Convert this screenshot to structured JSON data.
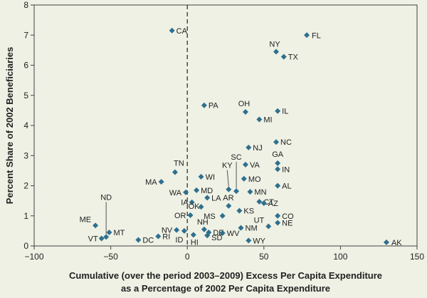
{
  "chart_data": {
    "type": "scatter",
    "title": "",
    "xlabel_line1": "Cumulative (over the period 2003–2009) Excess Per Capita Expenditure",
    "xlabel_line2": "as a Percentage of 2002 Per Capita Expenditure",
    "ylabel": "Percent Share of 2002 Beneficiaries",
    "xlim": [
      -100,
      150
    ],
    "ylim": [
      0,
      8
    ],
    "xticks": [
      -100,
      -50,
      0,
      50,
      100,
      150
    ],
    "yticks": [
      0,
      1,
      2,
      3,
      4,
      5,
      6,
      7,
      8
    ],
    "reference_line_x": 0,
    "marker_color": "#2f6f8f",
    "points": [
      {
        "label": "CA",
        "x": -10,
        "y": 7.15
      },
      {
        "label": "FL",
        "x": 78,
        "y": 7.0
      },
      {
        "label": "NY",
        "x": 58,
        "y": 6.45
      },
      {
        "label": "TX",
        "x": 63,
        "y": 6.28
      },
      {
        "label": "PA",
        "x": 11,
        "y": 4.67
      },
      {
        "label": "OH",
        "x": 38,
        "y": 4.45
      },
      {
        "label": "IL",
        "x": 59,
        "y": 4.48
      },
      {
        "label": "MI",
        "x": 47,
        "y": 4.2
      },
      {
        "label": "NC",
        "x": 58,
        "y": 3.45
      },
      {
        "label": "NJ",
        "x": 40,
        "y": 3.27
      },
      {
        "label": "GA",
        "x": 59,
        "y": 2.75
      },
      {
        "label": "VA",
        "x": 38,
        "y": 2.7
      },
      {
        "label": "IN",
        "x": 59,
        "y": 2.55
      },
      {
        "label": "SC",
        "x": 32,
        "y": 1.82
      },
      {
        "label": "TN",
        "x": -8,
        "y": 2.45
      },
      {
        "label": "WI",
        "x": 9,
        "y": 2.3
      },
      {
        "label": "MO",
        "x": 37,
        "y": 2.23
      },
      {
        "label": "MA",
        "x": -17,
        "y": 2.13
      },
      {
        "label": "AL",
        "x": 59,
        "y": 2.0
      },
      {
        "label": "KY",
        "x": 27,
        "y": 1.88
      },
      {
        "label": "MD",
        "x": 6,
        "y": 1.85
      },
      {
        "label": "MN",
        "x": 41,
        "y": 1.8
      },
      {
        "label": "WA",
        "x": -1,
        "y": 1.78
      },
      {
        "label": "LA",
        "x": 13,
        "y": 1.6
      },
      {
        "label": "IA",
        "x": 3,
        "y": 1.45
      },
      {
        "label": "CT",
        "x": 47,
        "y": 1.47
      },
      {
        "label": "AZ",
        "x": 50,
        "y": 1.42
      },
      {
        "label": "AR",
        "x": 27,
        "y": 1.33
      },
      {
        "label": "OK",
        "x": 9,
        "y": 1.3
      },
      {
        "label": "KS",
        "x": 34,
        "y": 1.17
      },
      {
        "label": "OR",
        "x": 2,
        "y": 1.02
      },
      {
        "label": "MS",
        "x": 23,
        "y": 1.0
      },
      {
        "label": "CO",
        "x": 59,
        "y": 1.0
      },
      {
        "label": "UT",
        "x": 53,
        "y": 0.65
      },
      {
        "label": "NE",
        "x": 59,
        "y": 0.77
      },
      {
        "label": "NM",
        "x": 35,
        "y": 0.6
      },
      {
        "label": "ME",
        "x": -60,
        "y": 0.68
      },
      {
        "label": "NH",
        "x": 11,
        "y": 0.55
      },
      {
        "label": "NV",
        "x": -7,
        "y": 0.53
      },
      {
        "label": "DE",
        "x": 14,
        "y": 0.45
      },
      {
        "label": "MT",
        "x": -51,
        "y": 0.45
      },
      {
        "label": "WV",
        "x": 23,
        "y": 0.43
      },
      {
        "label": "SD",
        "x": 13,
        "y": 0.35
      },
      {
        "label": "HI",
        "x": 4,
        "y": 0.37
      },
      {
        "label": "RI",
        "x": -19,
        "y": 0.32
      },
      {
        "label": "ND",
        "x": -53,
        "y": 0.3
      },
      {
        "label": "VT",
        "x": -56,
        "y": 0.25
      },
      {
        "label": "DC",
        "x": -32,
        "y": 0.2
      },
      {
        "label": "WY",
        "x": 40,
        "y": 0.18
      },
      {
        "label": "ID",
        "x": -2,
        "y": 0.5
      },
      {
        "label": "AK",
        "x": 130,
        "y": 0.12
      }
    ]
  }
}
